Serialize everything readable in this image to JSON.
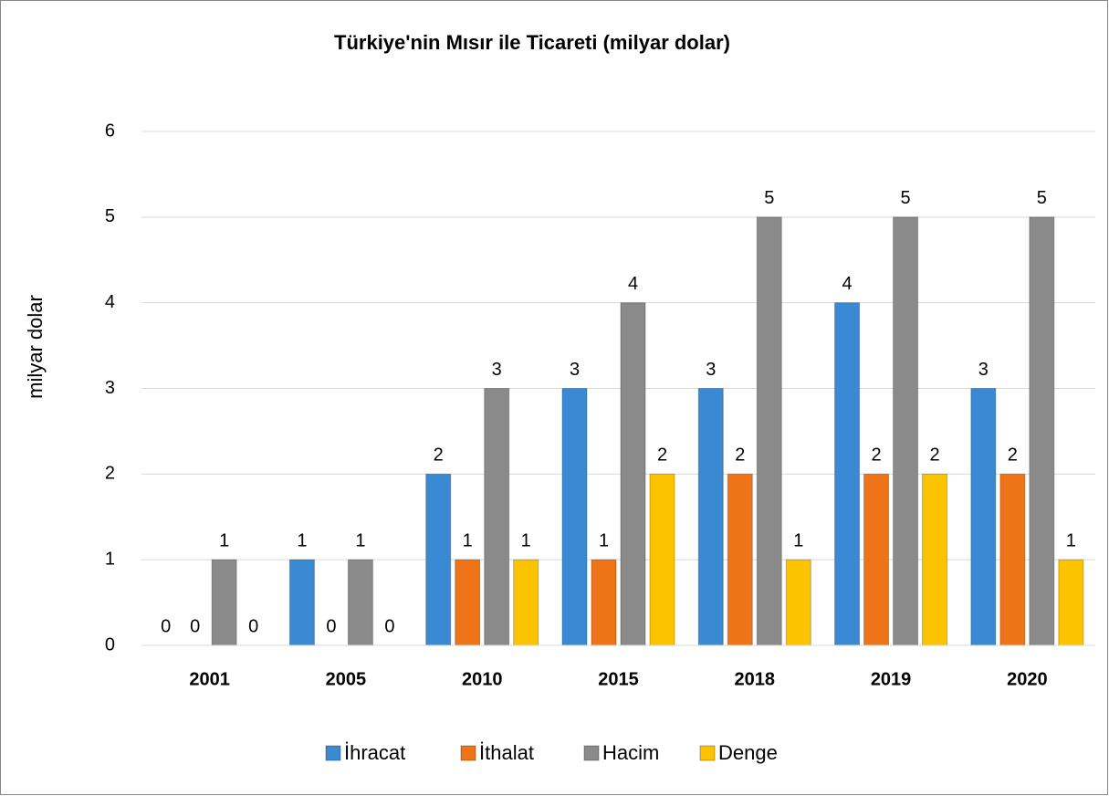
{
  "chart_data": {
    "type": "bar",
    "title": "Türkiye'nin Mısır ile Ticareti (milyar dolar)",
    "y_label": "milyar dolar",
    "categories": [
      "2001",
      "2005",
      "2010",
      "2015",
      "2018",
      "2019",
      "2020"
    ],
    "series": [
      {
        "name": "İhracat",
        "color": "#3a8ad3",
        "values": [
          0,
          1,
          2,
          3,
          3,
          4,
          3
        ]
      },
      {
        "name": "İthalat",
        "color": "#ee7417",
        "values": [
          0,
          0,
          1,
          1,
          2,
          2,
          2
        ]
      },
      {
        "name": "Hacim",
        "color": "#8a8a8a",
        "values": [
          1,
          1,
          3,
          4,
          5,
          5,
          5
        ]
      },
      {
        "name": "Denge",
        "color": "#fcc400",
        "values": [
          0,
          0,
          1,
          2,
          1,
          2,
          1
        ]
      }
    ],
    "ylim": [
      0,
      6
    ],
    "yticks": [
      0,
      1,
      2,
      3,
      4,
      5,
      6
    ],
    "grid": true,
    "legend": "bottom"
  }
}
